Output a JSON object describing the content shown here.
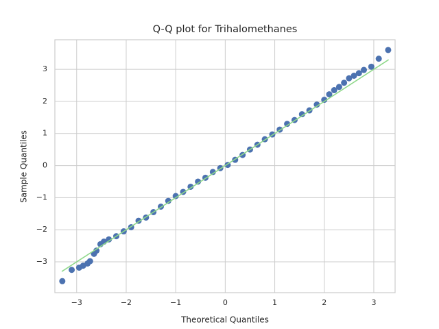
{
  "chart_data": {
    "type": "scatter",
    "title": "Q-Q plot for Trihalomethanes",
    "xlabel": "Theoretical Quantiles",
    "ylabel": "Sample Quantiles",
    "xlim": [
      -3.44,
      3.43
    ],
    "ylim": [
      -3.96,
      3.92
    ],
    "xticks": [
      {
        "value": -3,
        "label": "−3"
      },
      {
        "value": -2,
        "label": "−2"
      },
      {
        "value": -1,
        "label": "−1"
      },
      0,
      1,
      2,
      3
    ],
    "yticks": [
      {
        "value": -3,
        "label": "−3"
      },
      {
        "value": -2,
        "label": "−2"
      },
      {
        "value": -1,
        "label": "−1"
      },
      0,
      1,
      2,
      3
    ],
    "grid": true,
    "series": [
      {
        "type": "scatter",
        "color": "#4c72b0",
        "x": [
          -3.29,
          -3.1,
          -2.95,
          -2.87,
          -2.78,
          -2.73,
          -2.65,
          -2.6,
          -2.52,
          -2.45,
          -2.35,
          -2.2,
          -2.05,
          -1.9,
          -1.75,
          -1.6,
          -1.45,
          -1.3,
          -1.15,
          -1.0,
          -0.85,
          -0.7,
          -0.55,
          -0.4,
          -0.25,
          -0.1,
          0.05,
          0.2,
          0.35,
          0.5,
          0.65,
          0.8,
          0.95,
          1.1,
          1.25,
          1.4,
          1.55,
          1.7,
          1.85,
          2.0,
          2.1,
          2.2,
          2.3,
          2.4,
          2.5,
          2.6,
          2.7,
          2.8,
          2.95,
          3.1,
          3.29
        ],
        "values": [
          -3.6,
          -3.25,
          -3.18,
          -3.12,
          -3.05,
          -2.98,
          -2.75,
          -2.65,
          -2.45,
          -2.37,
          -2.3,
          -2.2,
          -2.05,
          -1.92,
          -1.72,
          -1.62,
          -1.45,
          -1.28,
          -1.1,
          -0.95,
          -0.82,
          -0.66,
          -0.5,
          -0.38,
          -0.2,
          -0.08,
          0.02,
          0.18,
          0.33,
          0.5,
          0.65,
          0.82,
          0.97,
          1.12,
          1.3,
          1.42,
          1.6,
          1.72,
          1.9,
          2.05,
          2.22,
          2.35,
          2.45,
          2.58,
          2.72,
          2.8,
          2.88,
          2.98,
          3.08,
          3.33,
          3.6
        ]
      },
      {
        "type": "line",
        "color": "#8fd88a",
        "x": [
          -3.3,
          3.3
        ],
        "values": [
          -3.3,
          3.3
        ]
      }
    ]
  }
}
